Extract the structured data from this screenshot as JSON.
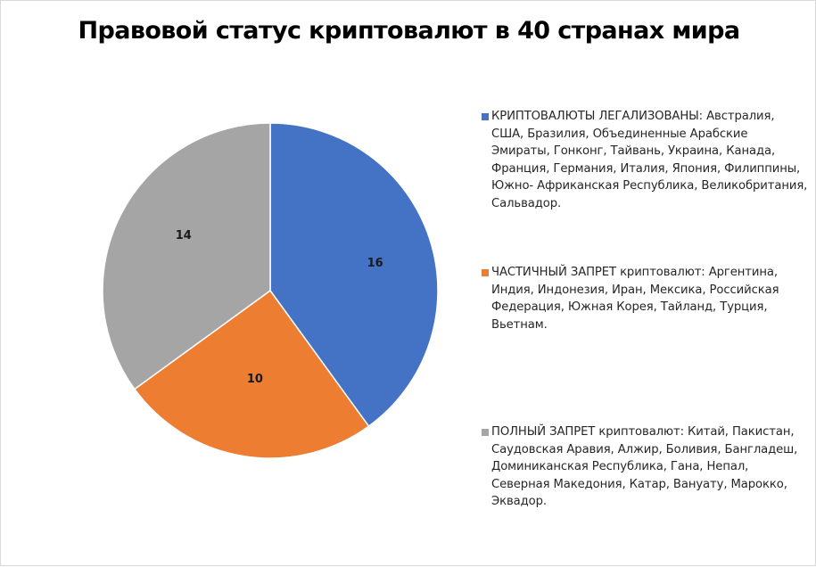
{
  "chart_data": {
    "type": "pie",
    "title": "Правовой статус криптовалют в 40 странах мира",
    "categories": [
      "КРИПТОВАЛЮТЫ ЛЕГАЛИЗОВАНЫ: Австралия, США, Бразилия, Объединенные Арабские Эмираты, Гонконг, Тайвань, Украина, Канада, Франция, Германия, Италия, Япония, Филиппины, Южно- Африканская Республика, Великобритания, Сальвадор.",
      "ЧАСТИЧНЫЙ ЗАПРЕТ криптовалют: Аргентина, Индия, Индонезия, Иран, Мексика, Российская Федерация, Южная Корея, Тайланд, Турция, Вьетнам.",
      "ПОЛНЫЙ ЗАПРЕТ криптовалют: Китай, Пакистан, Саудовская Аравия, Алжир, Боливия, Бангладеш, Доминиканская Республика, Гана, Непал, Северная Македония, Катар, Вануату, Марокко, Эквадор."
    ],
    "values": [
      16,
      10,
      14
    ],
    "data_labels": [
      "16",
      "10",
      "14"
    ],
    "colors": [
      "#4472c4",
      "#ed7d31",
      "#a5a5a5"
    ],
    "legend_position": "right",
    "start_angle_deg": 0,
    "direction": "clockwise"
  }
}
